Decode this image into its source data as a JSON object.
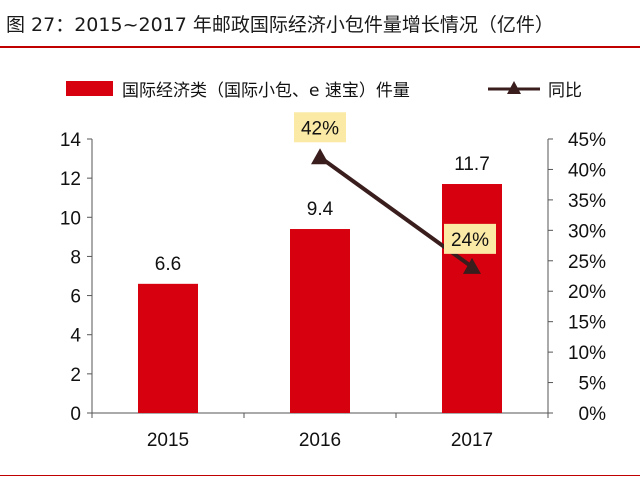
{
  "title": "图 27：2015~2017 年邮政国际经济小包件量增长情况（亿件）",
  "colors": {
    "bar": "#d7000f",
    "line": "#3a1d1d",
    "label_box": "#fbe9a6",
    "rule": "#c00000"
  },
  "chart_data": {
    "type": "bar",
    "categories": [
      "2015",
      "2016",
      "2017"
    ],
    "series": [
      {
        "name": "国际经济类（国际小包、e 速宝）件量",
        "type": "bar",
        "axis": "left",
        "values": [
          6.6,
          9.4,
          11.7
        ],
        "labels": [
          "6.6",
          "9.4",
          "11.7"
        ]
      },
      {
        "name": "同比",
        "type": "line",
        "axis": "right",
        "marker": "triangle",
        "values": [
          null,
          42,
          24
        ],
        "labels": [
          "",
          "42%",
          "24%"
        ]
      }
    ],
    "ylim": [
      0,
      14
    ],
    "yticks": [
      "0",
      "2",
      "4",
      "6",
      "8",
      "10",
      "12",
      "14"
    ],
    "y2lim": [
      0,
      45
    ],
    "y2ticks": [
      "0%",
      "5%",
      "10%",
      "15%",
      "20%",
      "25%",
      "30%",
      "35%",
      "40%",
      "45%"
    ],
    "legend": "top",
    "grid": false
  }
}
